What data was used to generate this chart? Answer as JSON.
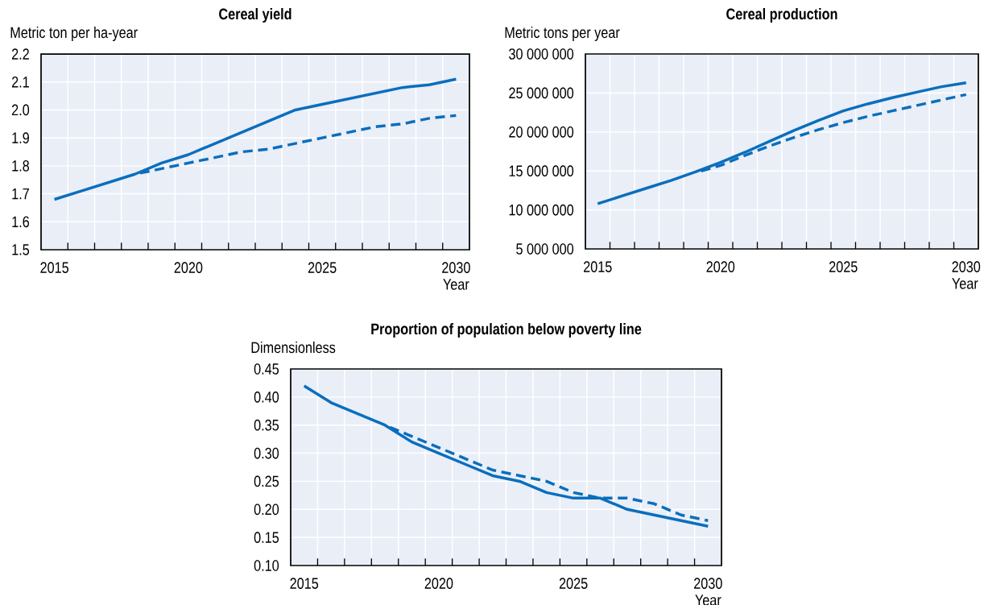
{
  "chart_data": [
    {
      "type": "line",
      "title": "Cereal yield",
      "ylabel": "Metric ton per ha-year",
      "xlabel": "Year",
      "x": [
        2015,
        2016,
        2017,
        2018,
        2019,
        2020,
        2021,
        2022,
        2023,
        2024,
        2025,
        2026,
        2027,
        2028,
        2029,
        2030
      ],
      "series": [
        {
          "color": "#0a6ebd",
          "line_style": "solid",
          "values": [
            1.68,
            1.71,
            1.74,
            1.77,
            1.81,
            1.84,
            1.88,
            1.92,
            1.96,
            2.0,
            2.02,
            2.04,
            2.06,
            2.08,
            2.09,
            2.11
          ]
        },
        {
          "color": "#0a6ebd",
          "line_style": "dashed",
          "x": [
            2018,
            2019,
            2020,
            2021,
            2022,
            2023,
            2024,
            2025,
            2026,
            2027,
            2028,
            2029,
            2030
          ],
          "values": [
            1.77,
            1.79,
            1.81,
            1.83,
            1.85,
            1.86,
            1.88,
            1.9,
            1.92,
            1.94,
            1.95,
            1.97,
            1.98
          ]
        }
      ],
      "xlim": [
        2014.5,
        2030.5
      ],
      "ylim": [
        1.5,
        2.2
      ],
      "xticks": [
        2015,
        {
          "value": 2015.5,
          "label": null
        },
        {
          "value": 2016.5,
          "label": null
        },
        {
          "value": 2017.5,
          "label": null
        },
        {
          "value": 2018.5,
          "label": null
        },
        {
          "value": 2019.5,
          "label": null
        },
        2020,
        {
          "value": 2020.5,
          "label": null
        },
        {
          "value": 2021.5,
          "label": null
        },
        {
          "value": 2022.5,
          "label": null
        },
        {
          "value": 2023.5,
          "label": null
        },
        {
          "value": 2024.5,
          "label": null
        },
        2025,
        {
          "value": 2025.5,
          "label": null
        },
        {
          "value": 2026.5,
          "label": null
        },
        {
          "value": 2027.5,
          "label": null
        },
        {
          "value": 2028.5,
          "label": null
        },
        {
          "value": 2029.5,
          "label": null
        },
        2030
      ],
      "yticks": [
        {
          "value": 1.5,
          "label": "1.5"
        },
        {
          "value": 1.6,
          "label": "1.6"
        },
        {
          "value": 1.7,
          "label": "1.7"
        },
        {
          "value": 1.8,
          "label": "1.8"
        },
        {
          "value": 1.9,
          "label": "1.9"
        },
        {
          "value": 2.0,
          "label": "2.0"
        },
        {
          "value": 2.1,
          "label": "2.1"
        },
        {
          "value": 2.2,
          "label": "2.2"
        }
      ],
      "grid": true
    },
    {
      "type": "line",
      "title": "Cereal production",
      "ylabel": "Metric tons per year",
      "xlabel": "Year",
      "x": [
        2015,
        2016,
        2017,
        2018,
        2019,
        2020,
        2021,
        2022,
        2023,
        2024,
        2025,
        2026,
        2027,
        2028,
        2029,
        2030
      ],
      "series": [
        {
          "color": "#0a6ebd",
          "line_style": "solid",
          "values": [
            10800000,
            11800000,
            12800000,
            13800000,
            14900000,
            16100000,
            17400000,
            18800000,
            20200000,
            21500000,
            22700000,
            23600000,
            24400000,
            25100000,
            25800000,
            26300000
          ]
        },
        {
          "color": "#0a6ebd",
          "line_style": "dashed",
          "x": [
            2019,
            2020,
            2021,
            2022,
            2023,
            2024,
            2025,
            2026,
            2027,
            2028,
            2029,
            2030
          ],
          "values": [
            14800000,
            15700000,
            17000000,
            18200000,
            19300000,
            20300000,
            21200000,
            22000000,
            22700000,
            23400000,
            24100000,
            24800000
          ]
        }
      ],
      "xlim": [
        2014.5,
        2030.5
      ],
      "ylim": [
        5000000,
        30000000
      ],
      "xticks": [
        2015,
        {
          "value": 2015.5,
          "label": null
        },
        {
          "value": 2016.5,
          "label": null
        },
        {
          "value": 2017.5,
          "label": null
        },
        {
          "value": 2018.5,
          "label": null
        },
        {
          "value": 2019.5,
          "label": null
        },
        2020,
        {
          "value": 2020.5,
          "label": null
        },
        {
          "value": 2021.5,
          "label": null
        },
        {
          "value": 2022.5,
          "label": null
        },
        {
          "value": 2023.5,
          "label": null
        },
        {
          "value": 2024.5,
          "label": null
        },
        2025,
        {
          "value": 2025.5,
          "label": null
        },
        {
          "value": 2026.5,
          "label": null
        },
        {
          "value": 2027.5,
          "label": null
        },
        {
          "value": 2028.5,
          "label": null
        },
        {
          "value": 2029.5,
          "label": null
        },
        2030
      ],
      "yticks": [
        {
          "value": 5000000,
          "label": "5 000 000"
        },
        {
          "value": 10000000,
          "label": "10 000 000"
        },
        {
          "value": 15000000,
          "label": "15 000 000"
        },
        {
          "value": 20000000,
          "label": "20 000 000"
        },
        {
          "value": 25000000,
          "label": "25 000 000"
        },
        {
          "value": 30000000,
          "label": "30 000 000"
        }
      ],
      "grid": true
    },
    {
      "type": "line",
      "title": "Proportion of population below poverty line",
      "ylabel": "Dimensionless",
      "xlabel": "Year",
      "x": [
        2015,
        2016,
        2017,
        2018,
        2019,
        2020,
        2021,
        2022,
        2023,
        2024,
        2025,
        2026,
        2027,
        2028,
        2029,
        2030
      ],
      "series": [
        {
          "color": "#0a6ebd",
          "line_style": "solid",
          "values": [
            0.42,
            0.39,
            0.37,
            0.35,
            0.32,
            0.3,
            0.28,
            0.26,
            0.25,
            0.23,
            0.22,
            0.22,
            0.2,
            0.19,
            0.18,
            0.17
          ]
        },
        {
          "color": "#0a6ebd",
          "line_style": "dashed",
          "x": [
            2018,
            2019,
            2020,
            2021,
            2022,
            2023,
            2024,
            2025,
            2026,
            2027,
            2028,
            2029,
            2030
          ],
          "values": [
            0.35,
            0.33,
            0.31,
            0.29,
            0.27,
            0.26,
            0.25,
            0.23,
            0.22,
            0.22,
            0.21,
            0.19,
            0.18
          ]
        }
      ],
      "xlim": [
        2014.5,
        2030.5
      ],
      "ylim": [
        0.1,
        0.45
      ],
      "xticks": [
        2015,
        {
          "value": 2015.5,
          "label": null
        },
        {
          "value": 2016.5,
          "label": null
        },
        {
          "value": 2017.5,
          "label": null
        },
        {
          "value": 2018.5,
          "label": null
        },
        {
          "value": 2019.5,
          "label": null
        },
        2020,
        {
          "value": 2020.5,
          "label": null
        },
        {
          "value": 2021.5,
          "label": null
        },
        {
          "value": 2022.5,
          "label": null
        },
        {
          "value": 2023.5,
          "label": null
        },
        {
          "value": 2024.5,
          "label": null
        },
        2025,
        {
          "value": 2025.5,
          "label": null
        },
        {
          "value": 2026.5,
          "label": null
        },
        {
          "value": 2027.5,
          "label": null
        },
        {
          "value": 2028.5,
          "label": null
        },
        {
          "value": 2029.5,
          "label": null
        },
        2030
      ],
      "yticks": [
        {
          "value": 0.1,
          "label": "0.10"
        },
        {
          "value": 0.15,
          "label": "0.15"
        },
        {
          "value": 0.2,
          "label": "0.20"
        },
        {
          "value": 0.25,
          "label": "0.25"
        },
        {
          "value": 0.3,
          "label": "0.30"
        },
        {
          "value": 0.35,
          "label": "0.35"
        },
        {
          "value": 0.4,
          "label": "0.40"
        },
        {
          "value": 0.45,
          "label": "0.45"
        }
      ],
      "grid": true
    }
  ]
}
